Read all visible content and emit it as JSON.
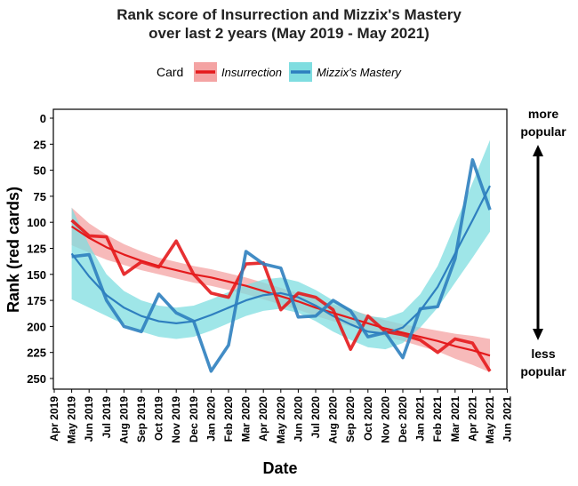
{
  "chart_data": {
    "type": "line",
    "title_line1": "Rank score of Insurrection and Mizzix's Mastery",
    "title_line2": "over last 2 years (May 2019 - May 2021)",
    "xlabel": "Date",
    "ylabel": "Rank (red cards)",
    "legend_title": "Card",
    "legend_position": "top",
    "ylim": [
      0,
      260
    ],
    "y_reversed": true,
    "y_ticks": [
      0,
      25,
      50,
      75,
      100,
      125,
      150,
      175,
      200,
      225,
      250
    ],
    "x_ticks": [
      "Apr 2019",
      "May 2019",
      "Jun 2019",
      "Jul 2019",
      "Aug 2019",
      "Sep 2019",
      "Oct 2019",
      "Nov 2019",
      "Dec 2019",
      "Jan 2020",
      "Feb 2020",
      "Mar 2020",
      "Apr 2020",
      "May 2020",
      "Jun 2020",
      "Jul 2020",
      "Aug 2020",
      "Sep 2020",
      "Oct 2020",
      "Nov 2020",
      "Dec 2020",
      "Jan 2021",
      "Feb 2021",
      "Mar 2021",
      "Apr 2021",
      "May 2021",
      "Jun 2021"
    ],
    "x_start_index": 1,
    "series": [
      {
        "name": "Insurrection",
        "color": "#e41a1c",
        "band_color": "#f4a3a3",
        "values": [
          98,
          113,
          114,
          150,
          138,
          143,
          118,
          150,
          168,
          172,
          140,
          139,
          184,
          168,
          172,
          184,
          222,
          190,
          205,
          208,
          213,
          225,
          212,
          216,
          243
        ],
        "trend": [
          104,
          115,
          124,
          131,
          137,
          142,
          146,
          150,
          153,
          157,
          161,
          166,
          171,
          176,
          182,
          187,
          192,
          197,
          202,
          206,
          210,
          214,
          219,
          223,
          228
        ],
        "band_halfwidth": [
          18,
          14,
          12,
          10,
          9,
          8,
          8,
          8,
          8,
          8,
          8,
          8,
          8,
          8,
          8,
          8,
          8,
          8,
          8,
          8,
          9,
          10,
          12,
          14,
          16
        ]
      },
      {
        "name": "Mizzix's Mastery",
        "color": "#2e7fbf",
        "band_color": "#7fdde0",
        "values": [
          133,
          131,
          175,
          200,
          205,
          169,
          187,
          195,
          243,
          218,
          128,
          140,
          144,
          191,
          190,
          175,
          185,
          210,
          206,
          230,
          183,
          181,
          135,
          40,
          88
        ],
        "trend": [
          130,
          152,
          170,
          182,
          190,
          195,
          197,
          195,
          189,
          182,
          175,
          170,
          168,
          172,
          180,
          190,
          198,
          205,
          207,
          201,
          185,
          162,
          130,
          98,
          65
        ],
        "band_halfwidth": [
          44,
          30,
          20,
          16,
          15,
          15,
          15,
          15,
          15,
          15,
          15,
          15,
          15,
          15,
          15,
          15,
          15,
          15,
          15,
          15,
          16,
          20,
          28,
          36,
          44
        ]
      }
    ]
  },
  "annotations": {
    "more_line1": "more",
    "more_line2": "popular",
    "less_line1": "less",
    "less_line2": "popular"
  }
}
